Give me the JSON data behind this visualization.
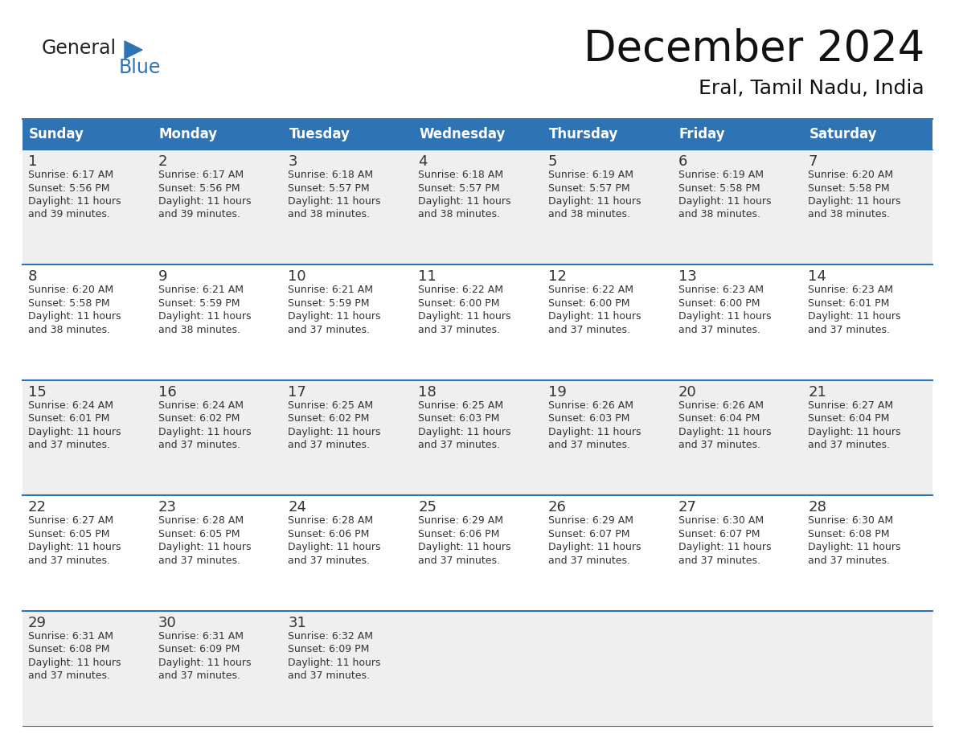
{
  "title": "December 2024",
  "subtitle": "Eral, Tamil Nadu, India",
  "header_bg_color": "#2E74B5",
  "header_text_color": "#FFFFFF",
  "row_bg_even": "#EFEFEF",
  "row_bg_odd": "#FFFFFF",
  "border_color": "#2E74B5",
  "day_headers": [
    "Sunday",
    "Monday",
    "Tuesday",
    "Wednesday",
    "Thursday",
    "Friday",
    "Saturday"
  ],
  "days": [
    {
      "day": 1,
      "col": 0,
      "row": 0,
      "sunrise": "6:17 AM",
      "sunset": "5:56 PM",
      "daylight": "11 hours and 39 minutes"
    },
    {
      "day": 2,
      "col": 1,
      "row": 0,
      "sunrise": "6:17 AM",
      "sunset": "5:56 PM",
      "daylight": "11 hours and 39 minutes"
    },
    {
      "day": 3,
      "col": 2,
      "row": 0,
      "sunrise": "6:18 AM",
      "sunset": "5:57 PM",
      "daylight": "11 hours and 38 minutes"
    },
    {
      "day": 4,
      "col": 3,
      "row": 0,
      "sunrise": "6:18 AM",
      "sunset": "5:57 PM",
      "daylight": "11 hours and 38 minutes"
    },
    {
      "day": 5,
      "col": 4,
      "row": 0,
      "sunrise": "6:19 AM",
      "sunset": "5:57 PM",
      "daylight": "11 hours and 38 minutes"
    },
    {
      "day": 6,
      "col": 5,
      "row": 0,
      "sunrise": "6:19 AM",
      "sunset": "5:58 PM",
      "daylight": "11 hours and 38 minutes"
    },
    {
      "day": 7,
      "col": 6,
      "row": 0,
      "sunrise": "6:20 AM",
      "sunset": "5:58 PM",
      "daylight": "11 hours and 38 minutes"
    },
    {
      "day": 8,
      "col": 0,
      "row": 1,
      "sunrise": "6:20 AM",
      "sunset": "5:58 PM",
      "daylight": "11 hours and 38 minutes"
    },
    {
      "day": 9,
      "col": 1,
      "row": 1,
      "sunrise": "6:21 AM",
      "sunset": "5:59 PM",
      "daylight": "11 hours and 38 minutes"
    },
    {
      "day": 10,
      "col": 2,
      "row": 1,
      "sunrise": "6:21 AM",
      "sunset": "5:59 PM",
      "daylight": "11 hours and 37 minutes"
    },
    {
      "day": 11,
      "col": 3,
      "row": 1,
      "sunrise": "6:22 AM",
      "sunset": "6:00 PM",
      "daylight": "11 hours and 37 minutes"
    },
    {
      "day": 12,
      "col": 4,
      "row": 1,
      "sunrise": "6:22 AM",
      "sunset": "6:00 PM",
      "daylight": "11 hours and 37 minutes"
    },
    {
      "day": 13,
      "col": 5,
      "row": 1,
      "sunrise": "6:23 AM",
      "sunset": "6:00 PM",
      "daylight": "11 hours and 37 minutes"
    },
    {
      "day": 14,
      "col": 6,
      "row": 1,
      "sunrise": "6:23 AM",
      "sunset": "6:01 PM",
      "daylight": "11 hours and 37 minutes"
    },
    {
      "day": 15,
      "col": 0,
      "row": 2,
      "sunrise": "6:24 AM",
      "sunset": "6:01 PM",
      "daylight": "11 hours and 37 minutes"
    },
    {
      "day": 16,
      "col": 1,
      "row": 2,
      "sunrise": "6:24 AM",
      "sunset": "6:02 PM",
      "daylight": "11 hours and 37 minutes"
    },
    {
      "day": 17,
      "col": 2,
      "row": 2,
      "sunrise": "6:25 AM",
      "sunset": "6:02 PM",
      "daylight": "11 hours and 37 minutes"
    },
    {
      "day": 18,
      "col": 3,
      "row": 2,
      "sunrise": "6:25 AM",
      "sunset": "6:03 PM",
      "daylight": "11 hours and 37 minutes"
    },
    {
      "day": 19,
      "col": 4,
      "row": 2,
      "sunrise": "6:26 AM",
      "sunset": "6:03 PM",
      "daylight": "11 hours and 37 minutes"
    },
    {
      "day": 20,
      "col": 5,
      "row": 2,
      "sunrise": "6:26 AM",
      "sunset": "6:04 PM",
      "daylight": "11 hours and 37 minutes"
    },
    {
      "day": 21,
      "col": 6,
      "row": 2,
      "sunrise": "6:27 AM",
      "sunset": "6:04 PM",
      "daylight": "11 hours and 37 minutes"
    },
    {
      "day": 22,
      "col": 0,
      "row": 3,
      "sunrise": "6:27 AM",
      "sunset": "6:05 PM",
      "daylight": "11 hours and 37 minutes"
    },
    {
      "day": 23,
      "col": 1,
      "row": 3,
      "sunrise": "6:28 AM",
      "sunset": "6:05 PM",
      "daylight": "11 hours and 37 minutes"
    },
    {
      "day": 24,
      "col": 2,
      "row": 3,
      "sunrise": "6:28 AM",
      "sunset": "6:06 PM",
      "daylight": "11 hours and 37 minutes"
    },
    {
      "day": 25,
      "col": 3,
      "row": 3,
      "sunrise": "6:29 AM",
      "sunset": "6:06 PM",
      "daylight": "11 hours and 37 minutes"
    },
    {
      "day": 26,
      "col": 4,
      "row": 3,
      "sunrise": "6:29 AM",
      "sunset": "6:07 PM",
      "daylight": "11 hours and 37 minutes"
    },
    {
      "day": 27,
      "col": 5,
      "row": 3,
      "sunrise": "6:30 AM",
      "sunset": "6:07 PM",
      "daylight": "11 hours and 37 minutes"
    },
    {
      "day": 28,
      "col": 6,
      "row": 3,
      "sunrise": "6:30 AM",
      "sunset": "6:08 PM",
      "daylight": "11 hours and 37 minutes"
    },
    {
      "day": 29,
      "col": 0,
      "row": 4,
      "sunrise": "6:31 AM",
      "sunset": "6:08 PM",
      "daylight": "11 hours and 37 minutes"
    },
    {
      "day": 30,
      "col": 1,
      "row": 4,
      "sunrise": "6:31 AM",
      "sunset": "6:09 PM",
      "daylight": "11 hours and 37 minutes"
    },
    {
      "day": 31,
      "col": 2,
      "row": 4,
      "sunrise": "6:32 AM",
      "sunset": "6:09 PM",
      "daylight": "11 hours and 37 minutes"
    }
  ],
  "logo_text_general": "General",
  "logo_text_blue": "Blue",
  "logo_color_general": "#222222",
  "logo_color_blue": "#2E74B5",
  "logo_triangle_color": "#2E74B5",
  "day_number_color": "#333333",
  "cell_text_color": "#333333",
  "title_fontsize": 38,
  "subtitle_fontsize": 18,
  "header_fontsize": 12,
  "day_num_fontsize": 13,
  "cell_fontsize": 9
}
